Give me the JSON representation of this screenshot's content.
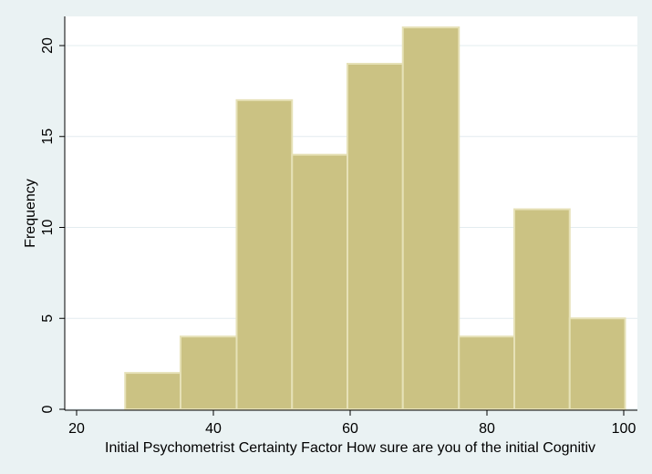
{
  "chart_data": {
    "type": "bar",
    "title": "",
    "xlabel": "Initial Psychometrist Certainty Factor  How sure are you of the initial Cognitiv",
    "ylabel": "Frequency",
    "xlim": [
      20,
      100
    ],
    "ylim": [
      0,
      21.5
    ],
    "x_ticks": [
      20,
      40,
      60,
      80,
      100
    ],
    "y_ticks": [
      0,
      5,
      10,
      15,
      20
    ],
    "grid": true,
    "legend": "none",
    "bar_color": "#cbc283",
    "bar_edge_color": "#e6e1b7",
    "plot_background": "#ffffff",
    "background": "#eaf2f3",
    "bins": [
      {
        "x0": 27.1,
        "x1": 35.2,
        "value": 2
      },
      {
        "x0": 35.2,
        "x1": 43.4,
        "value": 4
      },
      {
        "x0": 43.4,
        "x1": 51.5,
        "value": 17
      },
      {
        "x0": 51.5,
        "x1": 59.6,
        "value": 14
      },
      {
        "x0": 59.6,
        "x1": 67.7,
        "value": 19
      },
      {
        "x0": 67.7,
        "x1": 75.9,
        "value": 21
      },
      {
        "x0": 75.9,
        "x1": 84.0,
        "value": 4
      },
      {
        "x0": 84.0,
        "x1": 92.1,
        "value": 11
      },
      {
        "x0": 92.1,
        "x1": 100.2,
        "value": 5
      }
    ]
  }
}
